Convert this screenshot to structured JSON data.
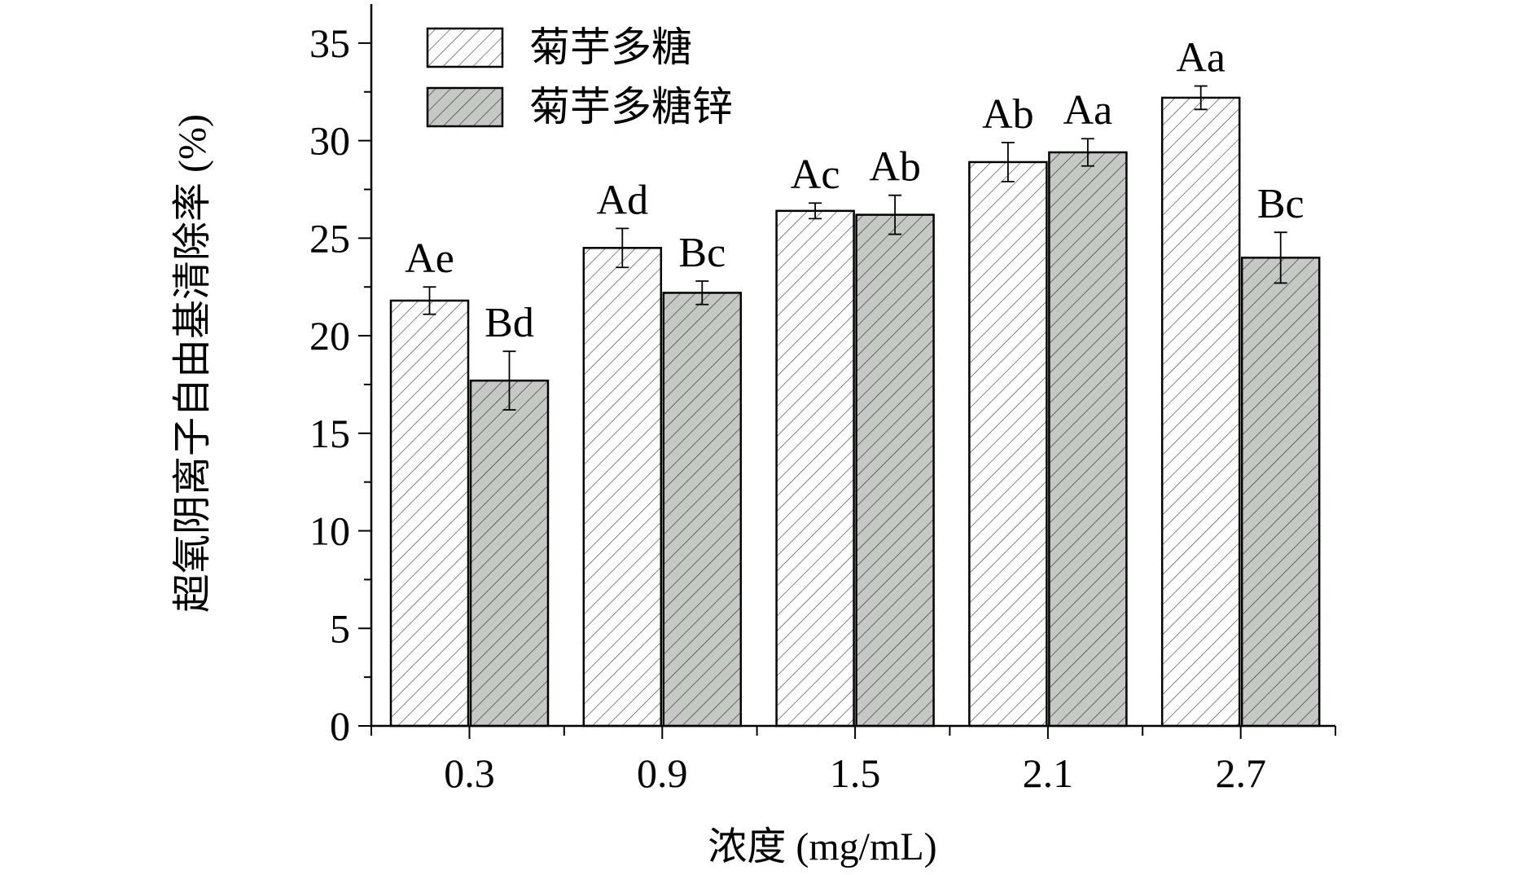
{
  "chart_data": {
    "type": "bar",
    "title": "",
    "xlabel": "浓度 (mg/mL)",
    "ylabel": "超氧阴离子自由基清除率 (%)",
    "categories": [
      "0.3",
      "0.9",
      "1.5",
      "2.1",
      "2.7"
    ],
    "ylim": [
      0,
      37
    ],
    "yticks": [
      "0",
      "5",
      "10",
      "15",
      "20",
      "25",
      "30",
      "35"
    ],
    "legend_position": "top-left",
    "grid": false,
    "series": [
      {
        "name": "菊芋多糖",
        "color": "#ffffff",
        "hatch_color": "#444444",
        "values": [
          21.8,
          24.5,
          26.4,
          28.9,
          32.2
        ],
        "errors": [
          0.7,
          1.0,
          0.4,
          1.0,
          0.6
        ],
        "labels": [
          "Ae",
          "Ad",
          "Ac",
          "Ab",
          "Aa"
        ]
      },
      {
        "name": "菊芋多糖锌",
        "color": "#c4c9c4",
        "hatch_color": "#333333",
        "values": [
          17.7,
          22.2,
          26.2,
          29.4,
          24.0
        ],
        "errors": [
          1.5,
          0.6,
          1.0,
          0.7,
          1.3
        ],
        "labels": [
          "Bd",
          "Bc",
          "Ab",
          "Aa",
          "Bc"
        ]
      }
    ]
  }
}
